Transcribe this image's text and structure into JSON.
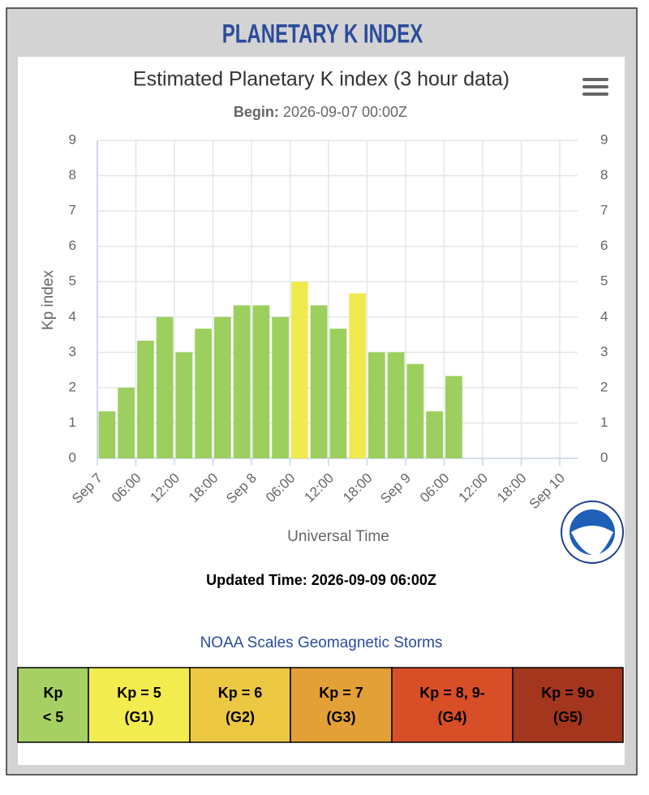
{
  "header": {
    "title": "PLANETARY K INDEX"
  },
  "chart_data": {
    "type": "bar",
    "title": "Estimated Planetary K index (3 hour data)",
    "subtitle_label": "Begin:",
    "subtitle": "2026-09-07 00:00Z",
    "x": [
      "2026-09-07T00:00Z",
      "2026-09-07T03:00Z",
      "2026-09-07T06:00Z",
      "2026-09-07T09:00Z",
      "2026-09-07T12:00Z",
      "2026-09-07T15:00Z",
      "2026-09-07T18:00Z",
      "2026-09-07T21:00Z",
      "2026-09-08T00:00Z",
      "2026-09-08T03:00Z",
      "2026-09-08T06:00Z",
      "2026-09-08T09:00Z",
      "2026-09-08T12:00Z",
      "2026-09-08T15:00Z",
      "2026-09-08T18:00Z",
      "2026-09-08T21:00Z",
      "2026-09-09T00:00Z",
      "2026-09-09T03:00Z",
      "2026-09-09T06:00Z"
    ],
    "values": [
      1.33,
      2,
      3.33,
      4,
      3,
      3.67,
      4,
      4.33,
      4.33,
      4,
      5,
      4.33,
      3.67,
      4.67,
      3,
      3,
      2.67,
      1.33,
      2.33
    ],
    "colors": [
      "#9ccf5e",
      "#9ccf5e",
      "#9ccf5e",
      "#9ccf5e",
      "#9ccf5e",
      "#9ccf5e",
      "#9ccf5e",
      "#9ccf5e",
      "#9ccf5e",
      "#9ccf5e",
      "#f1ea4e",
      "#9ccf5e",
      "#9ccf5e",
      "#f1ea4e",
      "#9ccf5e",
      "#9ccf5e",
      "#9ccf5e",
      "#9ccf5e",
      "#9ccf5e"
    ],
    "xlim": [
      "2026-09-07T00:00Z",
      "2026-09-10T00:00Z"
    ],
    "xticks": [
      {
        "value": "2026-09-07T00:00Z",
        "label": "Sep 7"
      },
      {
        "value": "2026-09-07T06:00Z",
        "label": "06:00"
      },
      {
        "value": "2026-09-07T12:00Z",
        "label": "12:00"
      },
      {
        "value": "2026-09-07T18:00Z",
        "label": "18:00"
      },
      {
        "value": "2026-09-08T00:00Z",
        "label": "Sep 8"
      },
      {
        "value": "2026-09-08T06:00Z",
        "label": "06:00"
      },
      {
        "value": "2026-09-08T12:00Z",
        "label": "12:00"
      },
      {
        "value": "2026-09-08T18:00Z",
        "label": "18:00"
      },
      {
        "value": "2026-09-09T00:00Z",
        "label": "Sep 9"
      },
      {
        "value": "2026-09-09T06:00Z",
        "label": "06:00"
      },
      {
        "value": "2026-09-09T12:00Z",
        "label": "12:00"
      },
      {
        "value": "2026-09-09T18:00Z",
        "label": "18:00"
      },
      {
        "value": "2026-09-10T00:00Z",
        "label": "Sep 10"
      }
    ],
    "ylim": [
      0,
      9
    ],
    "yticks": [
      0,
      1,
      2,
      3,
      4,
      5,
      6,
      7,
      8,
      9
    ],
    "y2lim": [
      0,
      9
    ],
    "y2ticks": [
      0,
      1,
      2,
      3,
      4,
      5,
      6,
      7,
      8,
      9
    ],
    "xlabel": "Universal Time",
    "ylabel": "Kp index",
    "grid": true
  },
  "updated": "Updated Time: 2026-09-09 06:00Z",
  "scales": {
    "title": "NOAA Scales Geomagnetic Storms",
    "cells": [
      {
        "lines": [
          "Kp",
          "< 5"
        ],
        "color": "#a6d064"
      },
      {
        "lines": [
          "Kp = 5",
          "(G1)"
        ],
        "color": "#f2ec4f"
      },
      {
        "lines": [
          "Kp = 6",
          "(G2)"
        ],
        "color": "#ecc842"
      },
      {
        "lines": [
          "Kp = 7",
          "(G3)"
        ],
        "color": "#e3a036"
      },
      {
        "lines": [
          "Kp = 8, 9-",
          "(G4)"
        ],
        "color": "#d84f27"
      },
      {
        "lines": [
          "Kp = 9o",
          "(G5)"
        ],
        "color": "#a3361c"
      }
    ]
  }
}
